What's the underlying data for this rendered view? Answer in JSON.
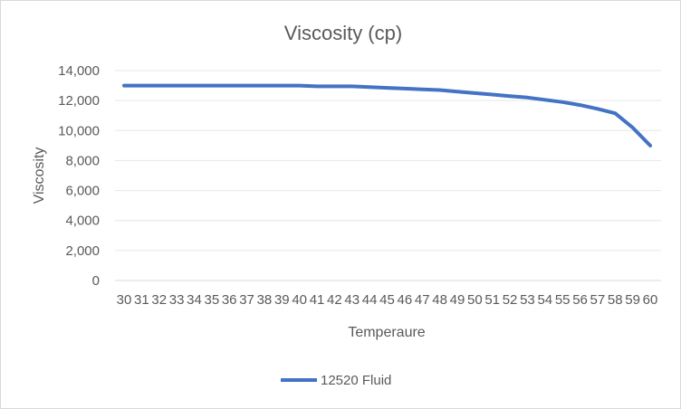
{
  "chart_data": {
    "type": "line",
    "title": "Viscosity (cp)",
    "xlabel": "Temperaure",
    "ylabel": "Viscosity",
    "ylim": [
      0,
      14000
    ],
    "y_ticks": [
      "0",
      "2,000",
      "4,000",
      "6,000",
      "8,000",
      "10,000",
      "12,000",
      "14,000"
    ],
    "categories": [
      "30",
      "31",
      "32",
      "33",
      "34",
      "35",
      "36",
      "37",
      "38",
      "39",
      "40",
      "41",
      "42",
      "43",
      "44",
      "45",
      "46",
      "47",
      "48",
      "49",
      "50",
      "51",
      "52",
      "53",
      "54",
      "55",
      "56",
      "57",
      "58",
      "59",
      "60"
    ],
    "series": [
      {
        "name": "12520 Fluid",
        "color": "#4472c4",
        "values": [
          13000,
          13000,
          13000,
          13000,
          13000,
          13000,
          13000,
          13000,
          13000,
          13000,
          13000,
          12950,
          12950,
          12950,
          12900,
          12850,
          12800,
          12750,
          12700,
          12600,
          12500,
          12400,
          12300,
          12200,
          12050,
          11900,
          11700,
          11450,
          11150,
          10200,
          9000
        ]
      }
    ],
    "grid": true,
    "legend": "bottom"
  }
}
